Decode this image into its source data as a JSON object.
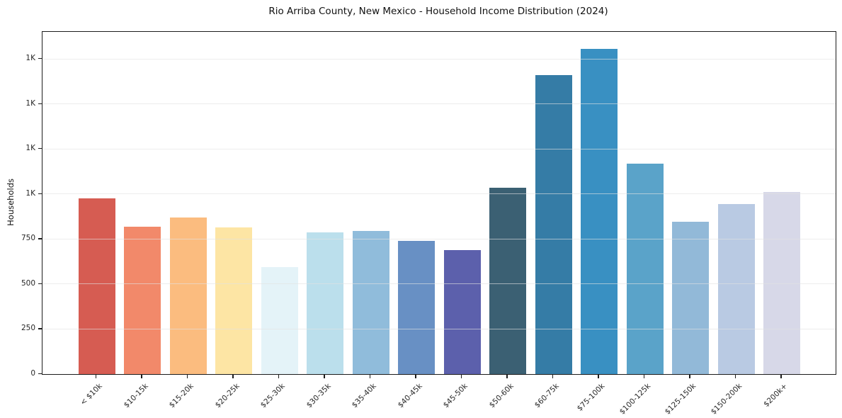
{
  "chart_data": {
    "type": "bar",
    "title": "Rio Arriba County, New Mexico - Household Income Distribution (2024)",
    "xlabel": "",
    "ylabel": "Households",
    "ylim": [
      0,
      1900
    ],
    "grid": true,
    "legend": false,
    "categories": [
      "< $10k",
      "$10-15k",
      "$15-20k",
      "$20-25k",
      "$25-30k",
      "$30-35k",
      "$35-40k",
      "$40-45k",
      "$45-50k",
      "$50-60k",
      "$60-75k",
      "$75-100k",
      "$100-125k",
      "$125-150k",
      "$150-200k",
      "$200k+"
    ],
    "values": [
      975,
      820,
      870,
      815,
      595,
      785,
      795,
      740,
      690,
      1035,
      1660,
      1805,
      1170,
      845,
      945,
      1010
    ],
    "bar_colors": [
      "#d65c52",
      "#f2896a",
      "#fbbc7f",
      "#fde5a4",
      "#e4f3f8",
      "#bbdfec",
      "#90bcdb",
      "#6890c4",
      "#5c60ac",
      "#3b6073",
      "#357ca6",
      "#3990c2",
      "#5aa3c9",
      "#92b9d8",
      "#b9cae3",
      "#d7d8e8"
    ],
    "yticks": [
      {
        "value": 0,
        "label": "0"
      },
      {
        "value": 250,
        "label": "250"
      },
      {
        "value": 500,
        "label": "500"
      },
      {
        "value": 750,
        "label": "750"
      },
      {
        "value": 1000,
        "label": "1K"
      },
      {
        "value": 1250,
        "label": "1K"
      },
      {
        "value": 1500,
        "label": "1K"
      },
      {
        "value": 1750,
        "label": "1K"
      }
    ],
    "axis_color": "#1c1c1c",
    "gridline_color": "#e2e2e2",
    "background_color": "#ffffff"
  }
}
